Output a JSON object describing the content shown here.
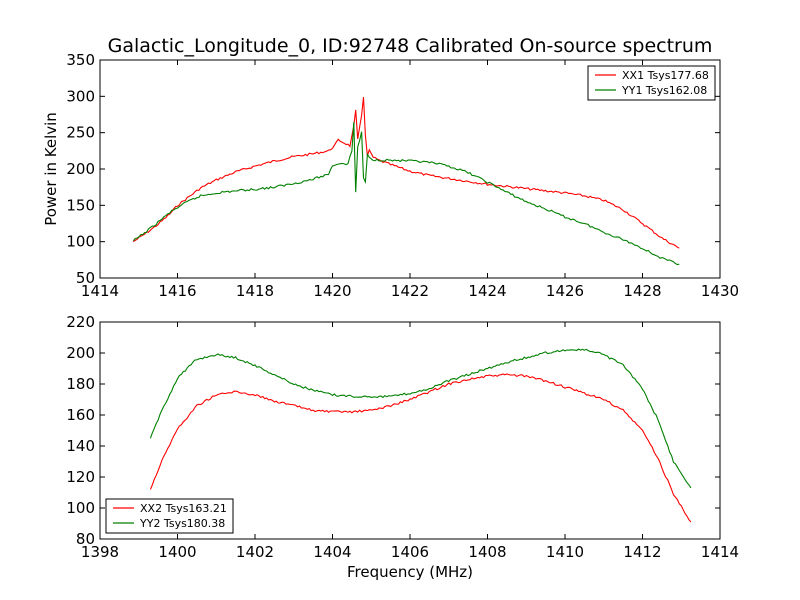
{
  "title": "Galactic_Longitude_0, ID:92748 Calibrated On-source spectrum",
  "colors": {
    "xx": "#ff0000",
    "yy": "#008000",
    "axis": "#000000",
    "background": "#ffffff"
  },
  "chart_data": [
    {
      "type": "line",
      "ylabel": "Power in Kelvin",
      "xlabel": "",
      "xlim": [
        1414,
        1430
      ],
      "ylim": [
        50,
        350
      ],
      "xticks": [
        1414,
        1416,
        1418,
        1420,
        1422,
        1424,
        1426,
        1428,
        1430
      ],
      "yticks": [
        50,
        100,
        150,
        200,
        250,
        300,
        350
      ],
      "grid": false,
      "legend_position": "top-right",
      "series": [
        {
          "name": "XX1 Tsys177.68",
          "color": "#ff0000",
          "points": [
            [
              1414.86,
              100
            ],
            [
              1415.2,
              112
            ],
            [
              1415.5,
              124
            ],
            [
              1415.8,
              138
            ],
            [
              1416.0,
              150
            ],
            [
              1416.3,
              162
            ],
            [
              1416.6,
              174
            ],
            [
              1417.0,
              185
            ],
            [
              1417.5,
              196
            ],
            [
              1418.0,
              204
            ],
            [
              1418.5,
              211
            ],
            [
              1419.0,
              217
            ],
            [
              1419.5,
              221
            ],
            [
              1419.9,
              225
            ],
            [
              1420.05,
              232
            ],
            [
              1420.15,
              240
            ],
            [
              1420.3,
              236
            ],
            [
              1420.45,
              232
            ],
            [
              1420.55,
              258
            ],
            [
              1420.6,
              280
            ],
            [
              1420.65,
              240
            ],
            [
              1420.75,
              275
            ],
            [
              1420.8,
              300
            ],
            [
              1420.85,
              245
            ],
            [
              1420.9,
              218
            ],
            [
              1420.95,
              225
            ],
            [
              1421.05,
              216
            ],
            [
              1421.2,
              212
            ],
            [
              1421.5,
              206
            ],
            [
              1422.0,
              197
            ],
            [
              1422.5,
              191
            ],
            [
              1423.0,
              187
            ],
            [
              1423.5,
              183
            ],
            [
              1424.0,
              179
            ],
            [
              1424.5,
              176
            ],
            [
              1425.0,
              173
            ],
            [
              1425.5,
              170
            ],
            [
              1426.0,
              167
            ],
            [
              1426.5,
              163
            ],
            [
              1427.0,
              157
            ],
            [
              1427.5,
              144
            ],
            [
              1428.0,
              125
            ],
            [
              1428.5,
              105
            ],
            [
              1428.95,
              91
            ]
          ]
        },
        {
          "name": "YY1 Tsys162.08",
          "color": "#008000",
          "points": [
            [
              1414.86,
              101
            ],
            [
              1415.2,
              114
            ],
            [
              1415.5,
              127
            ],
            [
              1415.8,
              140
            ],
            [
              1416.0,
              147
            ],
            [
              1416.3,
              156
            ],
            [
              1416.6,
              163
            ],
            [
              1417.0,
              167
            ],
            [
              1417.5,
              170
            ],
            [
              1418.0,
              172
            ],
            [
              1418.5,
              175
            ],
            [
              1419.0,
              180
            ],
            [
              1419.5,
              186
            ],
            [
              1419.9,
              193
            ],
            [
              1420.0,
              205
            ],
            [
              1420.2,
              208
            ],
            [
              1420.4,
              207
            ],
            [
              1420.5,
              225
            ],
            [
              1420.55,
              265
            ],
            [
              1420.6,
              168
            ],
            [
              1420.65,
              230
            ],
            [
              1420.75,
              250
            ],
            [
              1420.8,
              188
            ],
            [
              1420.85,
              181
            ],
            [
              1420.9,
              220
            ],
            [
              1421.0,
              213
            ],
            [
              1421.5,
              212
            ],
            [
              1422.0,
              211
            ],
            [
              1422.5,
              209
            ],
            [
              1423.0,
              204
            ],
            [
              1423.5,
              195
            ],
            [
              1424.0,
              182
            ],
            [
              1424.5,
              168
            ],
            [
              1425.0,
              155
            ],
            [
              1425.5,
              145
            ],
            [
              1426.0,
              134
            ],
            [
              1426.5,
              125
            ],
            [
              1427.0,
              113
            ],
            [
              1427.5,
              103
            ],
            [
              1428.0,
              91
            ],
            [
              1428.5,
              77
            ],
            [
              1428.95,
              69
            ]
          ]
        }
      ]
    },
    {
      "type": "line",
      "xlabel": "Frequency (MHz)",
      "ylabel": "",
      "xlim": [
        1398,
        1414
      ],
      "ylim": [
        80,
        220
      ],
      "xticks": [
        1398,
        1400,
        1402,
        1404,
        1406,
        1408,
        1410,
        1412,
        1414
      ],
      "yticks": [
        80,
        100,
        120,
        140,
        160,
        180,
        200,
        220
      ],
      "grid": false,
      "legend_position": "bottom-left",
      "series": [
        {
          "name": "XX2 Tsys163.21",
          "color": "#ff0000",
          "points": [
            [
              1399.3,
              112
            ],
            [
              1399.6,
              131
            ],
            [
              1400.0,
              151
            ],
            [
              1400.5,
              166
            ],
            [
              1401.0,
              173
            ],
            [
              1401.5,
              175
            ],
            [
              1402.0,
              173
            ],
            [
              1402.5,
              169
            ],
            [
              1403.0,
              166
            ],
            [
              1403.5,
              163
            ],
            [
              1404.0,
              162
            ],
            [
              1404.5,
              162
            ],
            [
              1405.0,
              163
            ],
            [
              1405.5,
              166
            ],
            [
              1406.0,
              170
            ],
            [
              1406.5,
              175
            ],
            [
              1407.0,
              180
            ],
            [
              1407.5,
              183
            ],
            [
              1408.0,
              185
            ],
            [
              1408.5,
              186
            ],
            [
              1409.0,
              185
            ],
            [
              1409.5,
              182
            ],
            [
              1410.0,
              178
            ],
            [
              1410.5,
              174
            ],
            [
              1411.0,
              170
            ],
            [
              1411.5,
              163
            ],
            [
              1412.0,
              150
            ],
            [
              1412.4,
              132
            ],
            [
              1412.8,
              109
            ],
            [
              1413.25,
              91
            ]
          ]
        },
        {
          "name": "YY2 Tsys180.38",
          "color": "#008000",
          "points": [
            [
              1399.3,
              145
            ],
            [
              1399.6,
              163
            ],
            [
              1400.0,
              184
            ],
            [
              1400.5,
              196
            ],
            [
              1401.0,
              199
            ],
            [
              1401.5,
              197
            ],
            [
              1402.0,
              192
            ],
            [
              1402.5,
              186
            ],
            [
              1403.0,
              180
            ],
            [
              1403.5,
              176
            ],
            [
              1404.0,
              173
            ],
            [
              1404.5,
              172
            ],
            [
              1405.0,
              172
            ],
            [
              1405.5,
              172
            ],
            [
              1406.0,
              174
            ],
            [
              1406.5,
              177
            ],
            [
              1407.0,
              182
            ],
            [
              1407.5,
              186
            ],
            [
              1408.0,
              190
            ],
            [
              1408.5,
              194
            ],
            [
              1409.0,
              197
            ],
            [
              1409.5,
              200
            ],
            [
              1410.0,
              202
            ],
            [
              1410.5,
              202
            ],
            [
              1411.0,
              199
            ],
            [
              1411.5,
              192
            ],
            [
              1412.0,
              177
            ],
            [
              1412.4,
              157
            ],
            [
              1412.8,
              130
            ],
            [
              1413.25,
              113
            ]
          ]
        }
      ]
    }
  ]
}
